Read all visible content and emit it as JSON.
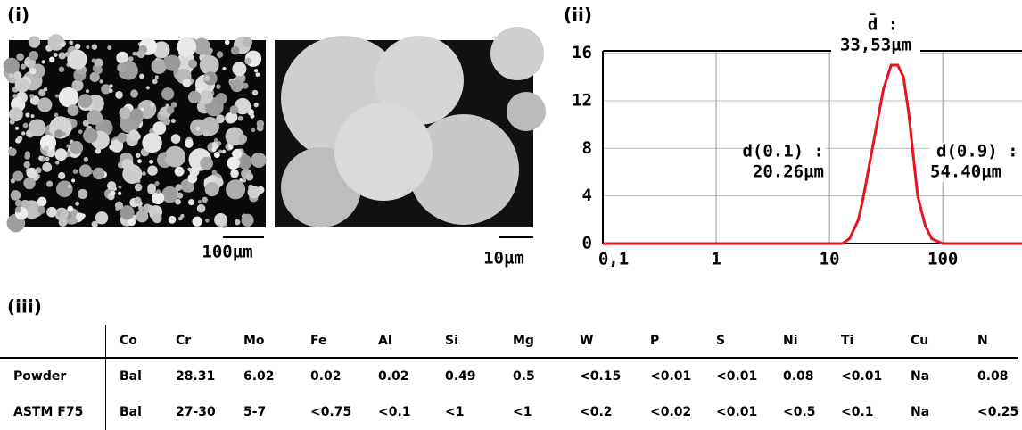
{
  "panels": {
    "i": "(i)",
    "ii": "(ii)",
    "iii": "(iii)"
  },
  "images": {
    "scale_left": "100µm",
    "scale_right": "10µm"
  },
  "chart_data": {
    "type": "line",
    "xscale": "log",
    "grid": true,
    "x": [
      0.1,
      10,
      13,
      15,
      18,
      20,
      25,
      30,
      35,
      40,
      45,
      50,
      54,
      60,
      70,
      80,
      100,
      500
    ],
    "series": [
      {
        "name": "distribution",
        "color": "#e8141c",
        "values": [
          0,
          0,
          0,
          0.4,
          2,
          4,
          9,
          13,
          15,
          15,
          14,
          11,
          8,
          4,
          1.5,
          0.4,
          0,
          0
        ]
      }
    ],
    "xlim": [
      0.1,
      500
    ],
    "ylim": [
      0,
      16.2
    ],
    "xticks": [
      {
        "value": 0.1,
        "label": "0,1"
      },
      1,
      10,
      100
    ],
    "yticks": [
      0,
      4,
      8,
      12,
      16
    ],
    "annotations": {
      "mean_label": "d̄ :",
      "mean_value": "33,53µm",
      "d10_label": "d(0.1) :",
      "d10_value": "20.26µm",
      "d90_label": "d(0.9) :",
      "d90_value": "54.40µm"
    }
  },
  "table": {
    "columns": [
      "Co",
      "Cr",
      "Mo",
      "Fe",
      "Al",
      "Si",
      "Mg",
      "W",
      "P",
      "S",
      "Ni",
      "Ti",
      "Cu",
      "N"
    ],
    "rows": [
      {
        "label": "Powder",
        "cells": [
          "Bal",
          "28.31",
          "6.02",
          "0.02",
          "0.02",
          "0.49",
          "0.5",
          "<0.15",
          "<0.01",
          "<0.01",
          "0.08",
          "<0.01",
          "Na",
          "0.08"
        ]
      },
      {
        "label": "ASTM F75",
        "cells": [
          "Bal",
          "27-30",
          "5-7",
          "<0.75",
          "<0.1",
          "<1",
          "<1",
          "<0.2",
          "<0.02",
          "<0.01",
          "<0.5",
          "<0.1",
          "Na",
          "<0.25"
        ]
      }
    ]
  }
}
